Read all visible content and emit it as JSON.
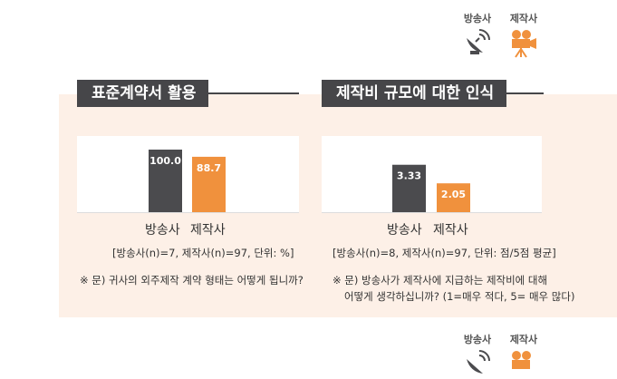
{
  "legend": {
    "broadcaster": "방송사",
    "producer": "제작사"
  },
  "colors": {
    "broadcaster": "#4b4b4e",
    "producer": "#f0913d",
    "panel": "#fdf0e7"
  },
  "chart_data": [
    {
      "type": "bar",
      "title": "표준계약서 활용",
      "categories": [
        "방송사",
        "제작사"
      ],
      "values": [
        100.0,
        88.7
      ],
      "value_labels": [
        "100.0",
        "88.7"
      ],
      "ylim": [
        0,
        100
      ],
      "note": "[방송사(n)=7, 제작사(n)=97, 단위: %]",
      "question": [
        "※ 문) 귀사의 외주제작 계약 형태는 어떻게 됩니까?"
      ]
    },
    {
      "type": "bar",
      "title": "제작비 규모에 대한 인식",
      "categories": [
        "방송사",
        "제작사"
      ],
      "values": [
        3.33,
        2.05
      ],
      "value_labels": [
        "3.33",
        "2.05"
      ],
      "ylim": [
        0,
        5
      ],
      "note": "[방송사(n)=8, 제작사(n)=97, 단위: 점/5점 평균]",
      "question": [
        "※ 문) 방송사가 제작사에 지급하는 제작비에 대해",
        "어떻게 생각하십니까? (1=매우 적다, 5= 매우 많다)"
      ]
    }
  ]
}
